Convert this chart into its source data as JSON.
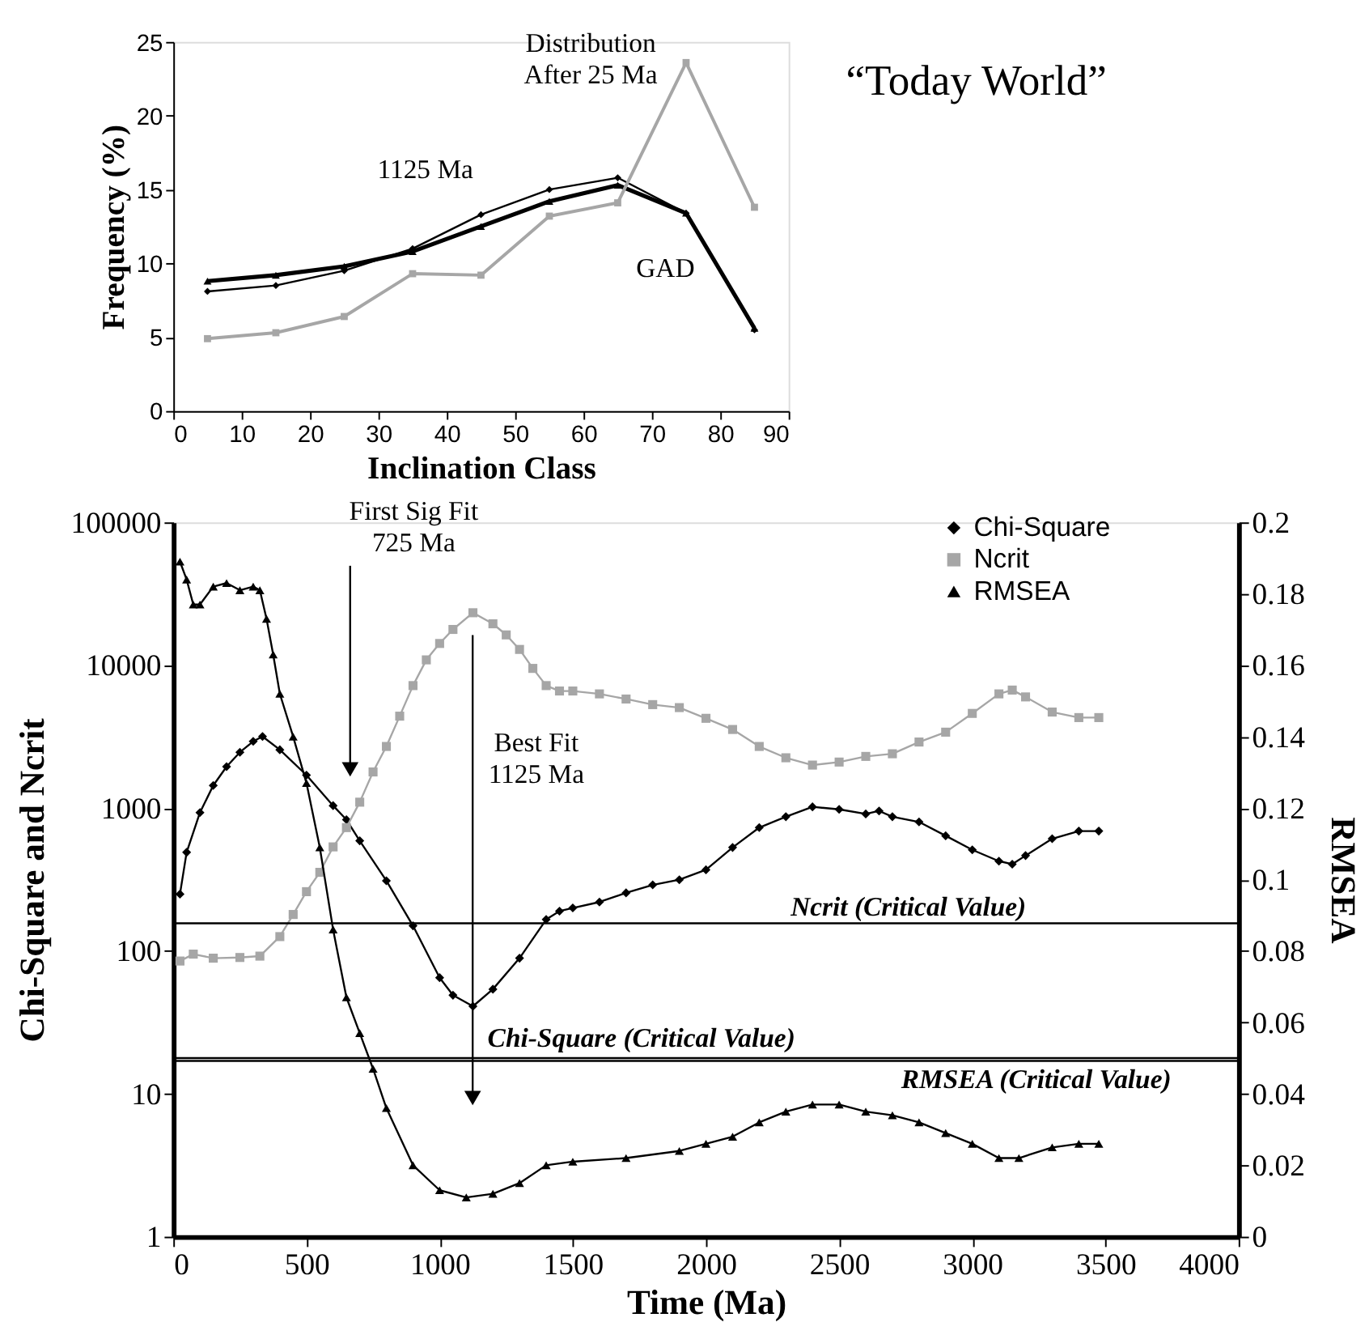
{
  "chart_data": [
    {
      "type": "line",
      "xlabel": "Inclination Class",
      "ylabel": "Frequency (%)",
      "x": [
        5,
        15,
        25,
        35,
        45,
        55,
        65,
        75,
        85
      ],
      "xlim": [
        0,
        90
      ],
      "xticks": [
        0,
        10,
        20,
        30,
        40,
        50,
        60,
        70,
        80,
        90
      ],
      "ylim": [
        0,
        25
      ],
      "yticks": [
        0,
        5,
        10,
        15,
        20,
        25
      ],
      "grid": false,
      "line_style": "solid",
      "series": [
        {
          "name": "GAD",
          "color": "#000000",
          "marker": "triangle",
          "values": [
            8.8,
            9.2,
            9.8,
            10.8,
            12.5,
            14.2,
            15.3,
            13.4,
            5.6
          ]
        },
        {
          "name": "1125 Ma",
          "color": "#000000",
          "marker": "diamond",
          "values": [
            8.1,
            8.5,
            9.5,
            11.0,
            13.3,
            15.0,
            15.8,
            13.4,
            5.5
          ]
        },
        {
          "name": "Distribution After 25 Ma",
          "color": "#a6a6a6",
          "marker": "square",
          "values": [
            4.9,
            5.3,
            6.4,
            9.3,
            9.2,
            13.2,
            14.1,
            23.6,
            13.8
          ]
        }
      ],
      "annotations": [
        "“Today World”"
      ]
    },
    {
      "type": "line",
      "xlabel": "Time (Ma)",
      "ylabel": "Chi-Square and Ncrit",
      "y2label": "RMSEA",
      "xlim": [
        0,
        4000
      ],
      "xticks": [
        0,
        500,
        1000,
        1500,
        2000,
        2500,
        3000,
        3500,
        4000
      ],
      "ylim": [
        1,
        100000
      ],
      "yticks": [
        1,
        10,
        100,
        1000,
        10000,
        100000
      ],
      "log": "y",
      "y2lim": [
        0,
        0.2
      ],
      "y2ticks": [
        0,
        0.02,
        0.04,
        0.06,
        0.08,
        0.1,
        0.12,
        0.14,
        0.16,
        0.18,
        0.2
      ],
      "grid": false,
      "legend": "top right",
      "line_style": "solid",
      "series": [
        {
          "name": "Chi-Square",
          "color": "#000000",
          "marker": "diamond",
          "x": [
            25,
            50,
            100,
            150,
            200,
            250,
            300,
            335,
            400,
            500,
            600,
            650,
            700,
            800,
            900,
            1000,
            1050,
            1125,
            1200,
            1300,
            1400,
            1450,
            1500,
            1600,
            1700,
            1800,
            1900,
            2000,
            2100,
            2200,
            2300,
            2400,
            2500,
            2600,
            2650,
            2700,
            2800,
            2900,
            3000,
            3100,
            3150,
            3200,
            3300,
            3400,
            3475
          ],
          "values": [
            250,
            490,
            930,
            1440,
            1950,
            2460,
            2930,
            3170,
            2560,
            1700,
            1040,
            830,
            590,
            310,
            150,
            65,
            49,
            41,
            54,
            89,
            166,
            190,
            200,
            220,
            255,
            290,
            315,
            370,
            530,
            730,
            870,
            1020,
            980,
            910,
            955,
            870,
            800,
            640,
            510,
            425,
            405,
            465,
            610,
            690,
            690
          ]
        },
        {
          "name": "Ncrit",
          "color": "#a6a6a6",
          "marker": "square",
          "x": [
            25,
            75,
            150,
            250,
            325,
            400,
            450,
            500,
            550,
            600,
            650,
            700,
            750,
            800,
            850,
            900,
            950,
            1000,
            1050,
            1125,
            1200,
            1250,
            1300,
            1350,
            1400,
            1450,
            1500,
            1600,
            1700,
            1800,
            1900,
            2000,
            2100,
            2200,
            2300,
            2400,
            2500,
            2600,
            2700,
            2800,
            2900,
            3000,
            3100,
            3150,
            3200,
            3300,
            3400,
            3475
          ],
          "values": [
            85,
            95,
            89,
            90,
            92,
            126,
            180,
            260,
            355,
            535,
            730,
            1100,
            1790,
            2700,
            4400,
            7200,
            10900,
            14200,
            17800,
            23300,
            19500,
            16300,
            12900,
            9500,
            7200,
            6600,
            6600,
            6300,
            5800,
            5300,
            5050,
            4250,
            3550,
            2700,
            2250,
            2000,
            2100,
            2300,
            2400,
            2900,
            3400,
            4600,
            6300,
            6700,
            6000,
            4700,
            4300,
            4300
          ]
        },
        {
          "name": "RMSEA",
          "color": "#000000",
          "marker": "triangle",
          "axis": "y2",
          "x": [
            25,
            50,
            75,
            100,
            150,
            200,
            250,
            300,
            325,
            350,
            375,
            400,
            450,
            500,
            550,
            600,
            650,
            700,
            750,
            800,
            900,
            1000,
            1100,
            1200,
            1300,
            1400,
            1500,
            1700,
            1900,
            2000,
            2100,
            2200,
            2300,
            2400,
            2500,
            2600,
            2700,
            2800,
            2900,
            3000,
            3100,
            3175,
            3300,
            3400,
            3475
          ],
          "values": [
            0.189,
            0.184,
            0.177,
            0.177,
            0.182,
            0.183,
            0.181,
            0.182,
            0.181,
            0.173,
            0.163,
            0.152,
            0.14,
            0.127,
            0.109,
            0.086,
            0.067,
            0.057,
            0.047,
            0.036,
            0.02,
            0.013,
            0.011,
            0.012,
            0.015,
            0.02,
            0.021,
            0.022,
            0.024,
            0.026,
            0.028,
            0.032,
            0.035,
            0.037,
            0.037,
            0.035,
            0.034,
            0.032,
            0.029,
            0.026,
            0.022,
            0.022,
            0.025,
            0.026,
            0.026
          ]
        }
      ],
      "ref_lines": [
        {
          "axis": "y",
          "value": 156,
          "label": "Ncrit (Critical Value)",
          "color": "#000000"
        },
        {
          "axis": "y",
          "value": 17,
          "label": "Chi-Square (Critical Value)",
          "color": "#000000"
        },
        {
          "axis": "y2",
          "value": 0.05,
          "label": "RMSEA (Critical Value)",
          "color": "#000000"
        }
      ],
      "annotations": [
        "First Sig Fit\n725 Ma",
        "Best Fit\n1125 Ma"
      ]
    }
  ]
}
